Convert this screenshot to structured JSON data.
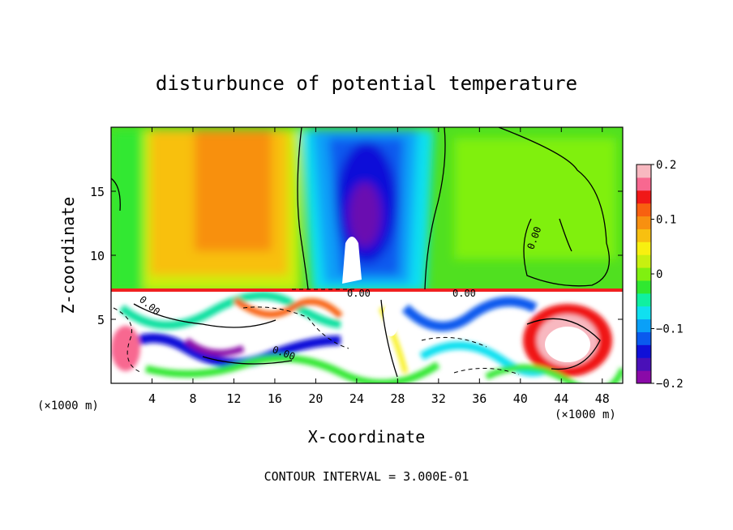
{
  "chart_data": {
    "type": "heatmap",
    "title": "disturbunce of potential temperature",
    "xlabel": "X-coordinate",
    "ylabel": "Z-coordinate",
    "x_unit": "(×1000 m)",
    "y_unit": "(×1000 m)",
    "xlim": [
      0,
      50
    ],
    "ylim": [
      0,
      20
    ],
    "x_ticks": [
      4,
      8,
      12,
      16,
      20,
      24,
      28,
      32,
      36,
      40,
      44,
      48
    ],
    "y_ticks": [
      5,
      10,
      15
    ],
    "colorbar": {
      "range": [
        -0.2,
        0.2
      ],
      "ticks": [
        {
          "value": 0.2,
          "label": "0.2"
        },
        {
          "value": 0.1,
          "label": "0.1"
        },
        {
          "value": 0,
          "label": "0"
        },
        {
          "value": -0.1,
          "label": "−0.1"
        },
        {
          "value": -0.2,
          "label": "−0.2"
        }
      ],
      "colors": [
        "#8a0aa8",
        "#4a10b8",
        "#1010d8",
        "#0a5aee",
        "#0aa0f8",
        "#10e0f0",
        "#10f0a0",
        "#30e830",
        "#80f010",
        "#c8f010",
        "#f8f010",
        "#f8c010",
        "#f89010",
        "#f86010",
        "#f01818",
        "#f86890",
        "#f8b8c0"
      ]
    },
    "contour_labels": [
      "0.00",
      "0.00",
      "0.00",
      "0.00",
      "0.00"
    ],
    "footer": "CONTOUR INTERVAL = 3.000E-01"
  }
}
